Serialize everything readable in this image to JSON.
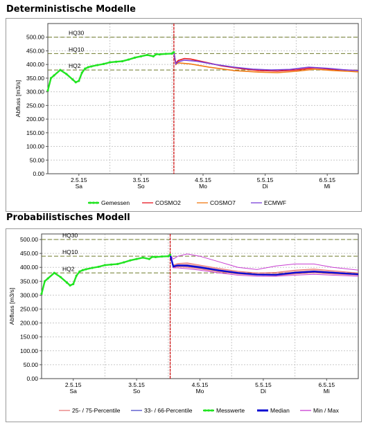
{
  "sections": {
    "deterministic_title": "Deterministische Modelle",
    "probabilistic_title": "Probabilistisches Modell"
  },
  "colors": {
    "measured": "#21e421",
    "cosmo2": "#e8141e",
    "cosmo7": "#f07a12",
    "ecmwf": "#7a3fd8",
    "threshold": "#6e7a2a",
    "now_line": "#c80000",
    "grid": "#c8c8c8",
    "band_25_75": "#e87878",
    "band_33_66": "#4a4ac8",
    "median": "#0a0ad2",
    "minmax": "#c83cd2"
  },
  "chart_data": [
    {
      "type": "line",
      "title": "Deterministische Modelle",
      "ylabel": "Abfluss [m3/s]",
      "ylim": [
        0,
        550
      ],
      "yticks": [
        "0.00",
        "50.00",
        "100.00",
        "150.00",
        "200.00",
        "250.00",
        "300.00",
        "350.00",
        "400.00",
        "450.00",
        "500.00"
      ],
      "xlim": [
        0,
        5
      ],
      "xticks": [
        {
          "date": "2.5.15",
          "day": "Sa",
          "x": 0.5
        },
        {
          "date": "3.5.15",
          "day": "So",
          "x": 1.5
        },
        {
          "date": "4.5.15",
          "day": "Mo",
          "x": 2.5
        },
        {
          "date": "5.5.15",
          "day": "Di",
          "x": 3.5
        },
        {
          "date": "6.5.15",
          "day": "Mi",
          "x": 4.5
        }
      ],
      "day_boundaries": [
        1,
        2,
        3,
        4
      ],
      "now_x": 2.03,
      "thresholds": [
        {
          "label": "HQ30",
          "value": 500
        },
        {
          "label": "HQ10",
          "value": 440
        },
        {
          "label": "HQ2",
          "value": 380
        }
      ],
      "series": [
        {
          "name": "Gemessen",
          "color": "#21e421",
          "width": 2.2,
          "x": [
            0,
            0.05,
            0.1,
            0.2,
            0.3,
            0.4,
            0.45,
            0.5,
            0.55,
            0.6,
            0.65,
            0.7,
            0.8,
            0.9,
            1.0,
            1.1,
            1.2,
            1.3,
            1.4,
            1.5,
            1.6,
            1.7,
            1.75,
            1.8,
            1.9,
            2.0,
            2.03
          ],
          "y": [
            305,
            350,
            360,
            380,
            365,
            345,
            335,
            340,
            370,
            385,
            390,
            393,
            398,
            402,
            408,
            410,
            412,
            418,
            425,
            430,
            435,
            430,
            438,
            437,
            439,
            440,
            445
          ]
        },
        {
          "name": "COSMO2",
          "color": "#e8141e",
          "width": 1.6,
          "x": [
            2.03,
            2.06,
            2.1,
            2.2,
            2.3,
            2.5,
            2.8,
            3.1,
            3.4,
            3.7,
            4.0,
            4.3,
            4.6,
            5.0
          ],
          "y": [
            445,
            405,
            415,
            422,
            420,
            410,
            395,
            385,
            378,
            376,
            380,
            388,
            382,
            378
          ]
        },
        {
          "name": "COSMO7",
          "color": "#f07a12",
          "width": 1.6,
          "x": [
            2.03,
            2.06,
            2.1,
            2.3,
            2.6,
            3.0,
            3.4,
            3.7,
            4.0,
            4.3,
            4.6,
            5.0
          ],
          "y": [
            445,
            400,
            406,
            402,
            390,
            378,
            372,
            370,
            375,
            383,
            378,
            373
          ]
        },
        {
          "name": "ECMWF",
          "color": "#7a3fd8",
          "width": 1.6,
          "x": [
            2.03,
            2.06,
            2.1,
            2.2,
            2.4,
            2.7,
            3.0,
            3.3,
            3.6,
            3.9,
            4.2,
            4.5,
            4.8,
            5.0
          ],
          "y": [
            445,
            402,
            410,
            416,
            412,
            400,
            390,
            383,
            380,
            382,
            390,
            386,
            380,
            378
          ]
        }
      ],
      "legend": {
        "placement": "bottom",
        "entries": [
          {
            "label": "Gemessen",
            "color": "#21e421",
            "marker": "line-dots"
          },
          {
            "label": "COSMO2",
            "color": "#e8141e",
            "marker": "line"
          },
          {
            "label": "COSMO7",
            "color": "#f07a12",
            "marker": "line"
          },
          {
            "label": "ECMWF",
            "color": "#7a3fd8",
            "marker": "line"
          }
        ]
      }
    },
    {
      "type": "line",
      "title": "Probabilistisches Modell",
      "ylabel": "Abfluss [m3/s]",
      "ylim": [
        0,
        520
      ],
      "yticks": [
        "0.00",
        "50.00",
        "100.00",
        "150.00",
        "200.00",
        "250.00",
        "300.00",
        "350.00",
        "400.00",
        "450.00",
        "500.00"
      ],
      "xlim": [
        0,
        5
      ],
      "xticks": [
        {
          "date": "2.5.15",
          "day": "Sa",
          "x": 0.5
        },
        {
          "date": "3.5.15",
          "day": "So",
          "x": 1.5
        },
        {
          "date": "4.5.15",
          "day": "Mo",
          "x": 2.5
        },
        {
          "date": "5.5.15",
          "day": "Di",
          "x": 3.5
        },
        {
          "date": "6.5.15",
          "day": "Mi",
          "x": 4.5
        }
      ],
      "day_boundaries": [
        1,
        2,
        3,
        4
      ],
      "now_x": 2.03,
      "thresholds": [
        {
          "label": "HQ30",
          "value": 500
        },
        {
          "label": "HQ10",
          "value": 440
        },
        {
          "label": "HQ2",
          "value": 380
        }
      ],
      "measured": {
        "name": "Messwerte",
        "x": [
          0,
          0.05,
          0.1,
          0.2,
          0.3,
          0.4,
          0.45,
          0.5,
          0.55,
          0.6,
          0.65,
          0.7,
          0.8,
          0.9,
          1.0,
          1.1,
          1.2,
          1.3,
          1.4,
          1.5,
          1.6,
          1.7,
          1.75,
          1.8,
          1.9,
          2.0,
          2.03
        ],
        "y": [
          305,
          350,
          360,
          380,
          365,
          345,
          335,
          340,
          370,
          385,
          390,
          393,
          398,
          402,
          408,
          410,
          412,
          418,
          425,
          430,
          435,
          430,
          438,
          437,
          439,
          440,
          445
        ]
      },
      "forecast_x": [
        2.03,
        2.08,
        2.15,
        2.3,
        2.5,
        2.8,
        3.1,
        3.4,
        3.7,
        4.0,
        4.3,
        4.6,
        5.0
      ],
      "minmax": {
        "name": "Min / Max",
        "lower": [
          445,
          398,
          398,
          395,
          390,
          380,
          372,
          368,
          368,
          372,
          375,
          372,
          368
        ],
        "upper": [
          445,
          430,
          440,
          448,
          440,
          420,
          400,
          392,
          405,
          412,
          412,
          400,
          390
        ]
      },
      "p25_75": {
        "name": "25- / 75-Percentile",
        "lower": [
          445,
          400,
          402,
          400,
          394,
          384,
          376,
          372,
          371,
          376,
          380,
          376,
          372
        ],
        "upper": [
          445,
          408,
          414,
          416,
          408,
          396,
          386,
          380,
          382,
          390,
          394,
          388,
          380
        ]
      },
      "p33_66": {
        "name": "33- / 66-Percentile",
        "lower": [
          445,
          401,
          404,
          402,
          396,
          386,
          377,
          373,
          372,
          378,
          382,
          378,
          373
        ],
        "upper": [
          445,
          405,
          410,
          410,
          404,
          392,
          382,
          376,
          376,
          384,
          388,
          384,
          377
        ]
      },
      "median": {
        "name": "Median",
        "y": [
          445,
          403,
          407,
          406,
          400,
          389,
          380,
          374,
          373,
          381,
          385,
          381,
          375
        ]
      },
      "legend": {
        "placement": "bottom",
        "entries": [
          {
            "label": "25- / 75-Percentile",
            "color": "#e87878",
            "marker": "line"
          },
          {
            "label": "33- / 66-Percentile",
            "color": "#4a4ac8",
            "marker": "line"
          },
          {
            "label": "Messwerte",
            "color": "#21e421",
            "marker": "line-dots"
          },
          {
            "label": "Median",
            "color": "#0a0ad2",
            "marker": "thick-line"
          },
          {
            "label": "Min / Max",
            "color": "#c83cd2",
            "marker": "line"
          }
        ]
      }
    }
  ]
}
